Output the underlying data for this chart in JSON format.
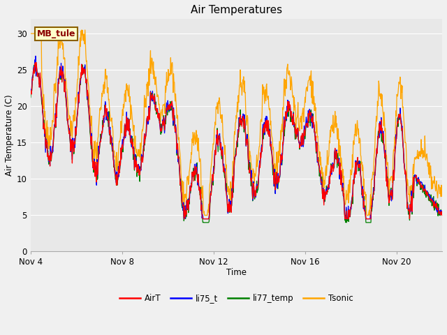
{
  "title": "Air Temperatures",
  "xlabel": "Time",
  "ylabel": "Air Temperature (C)",
  "ylim": [
    0,
    32
  ],
  "yticks": [
    0,
    5,
    10,
    15,
    20,
    25,
    30
  ],
  "plot_bg": "#e8e8e8",
  "fig_bg": "#f0f0f0",
  "annotation_text": "MB_tule",
  "annotation_color": "#8b0000",
  "annotation_bg": "#ffffcc",
  "annotation_edge": "#8b6000",
  "legend_labels": [
    "AirT",
    "li75_t",
    "li77_temp",
    "Tsonic"
  ],
  "line_colors": [
    "red",
    "blue",
    "green",
    "orange"
  ],
  "x_tick_pos": [
    0,
    4,
    8,
    12,
    16
  ],
  "x_tick_labels": [
    "Nov 4",
    "Nov 8",
    "Nov 12",
    "Nov 16",
    "Nov 20"
  ],
  "xlim": [
    0,
    18
  ],
  "n_points": 1000,
  "grid_color": "#ffffff",
  "spine_color": "#aaaaaa"
}
